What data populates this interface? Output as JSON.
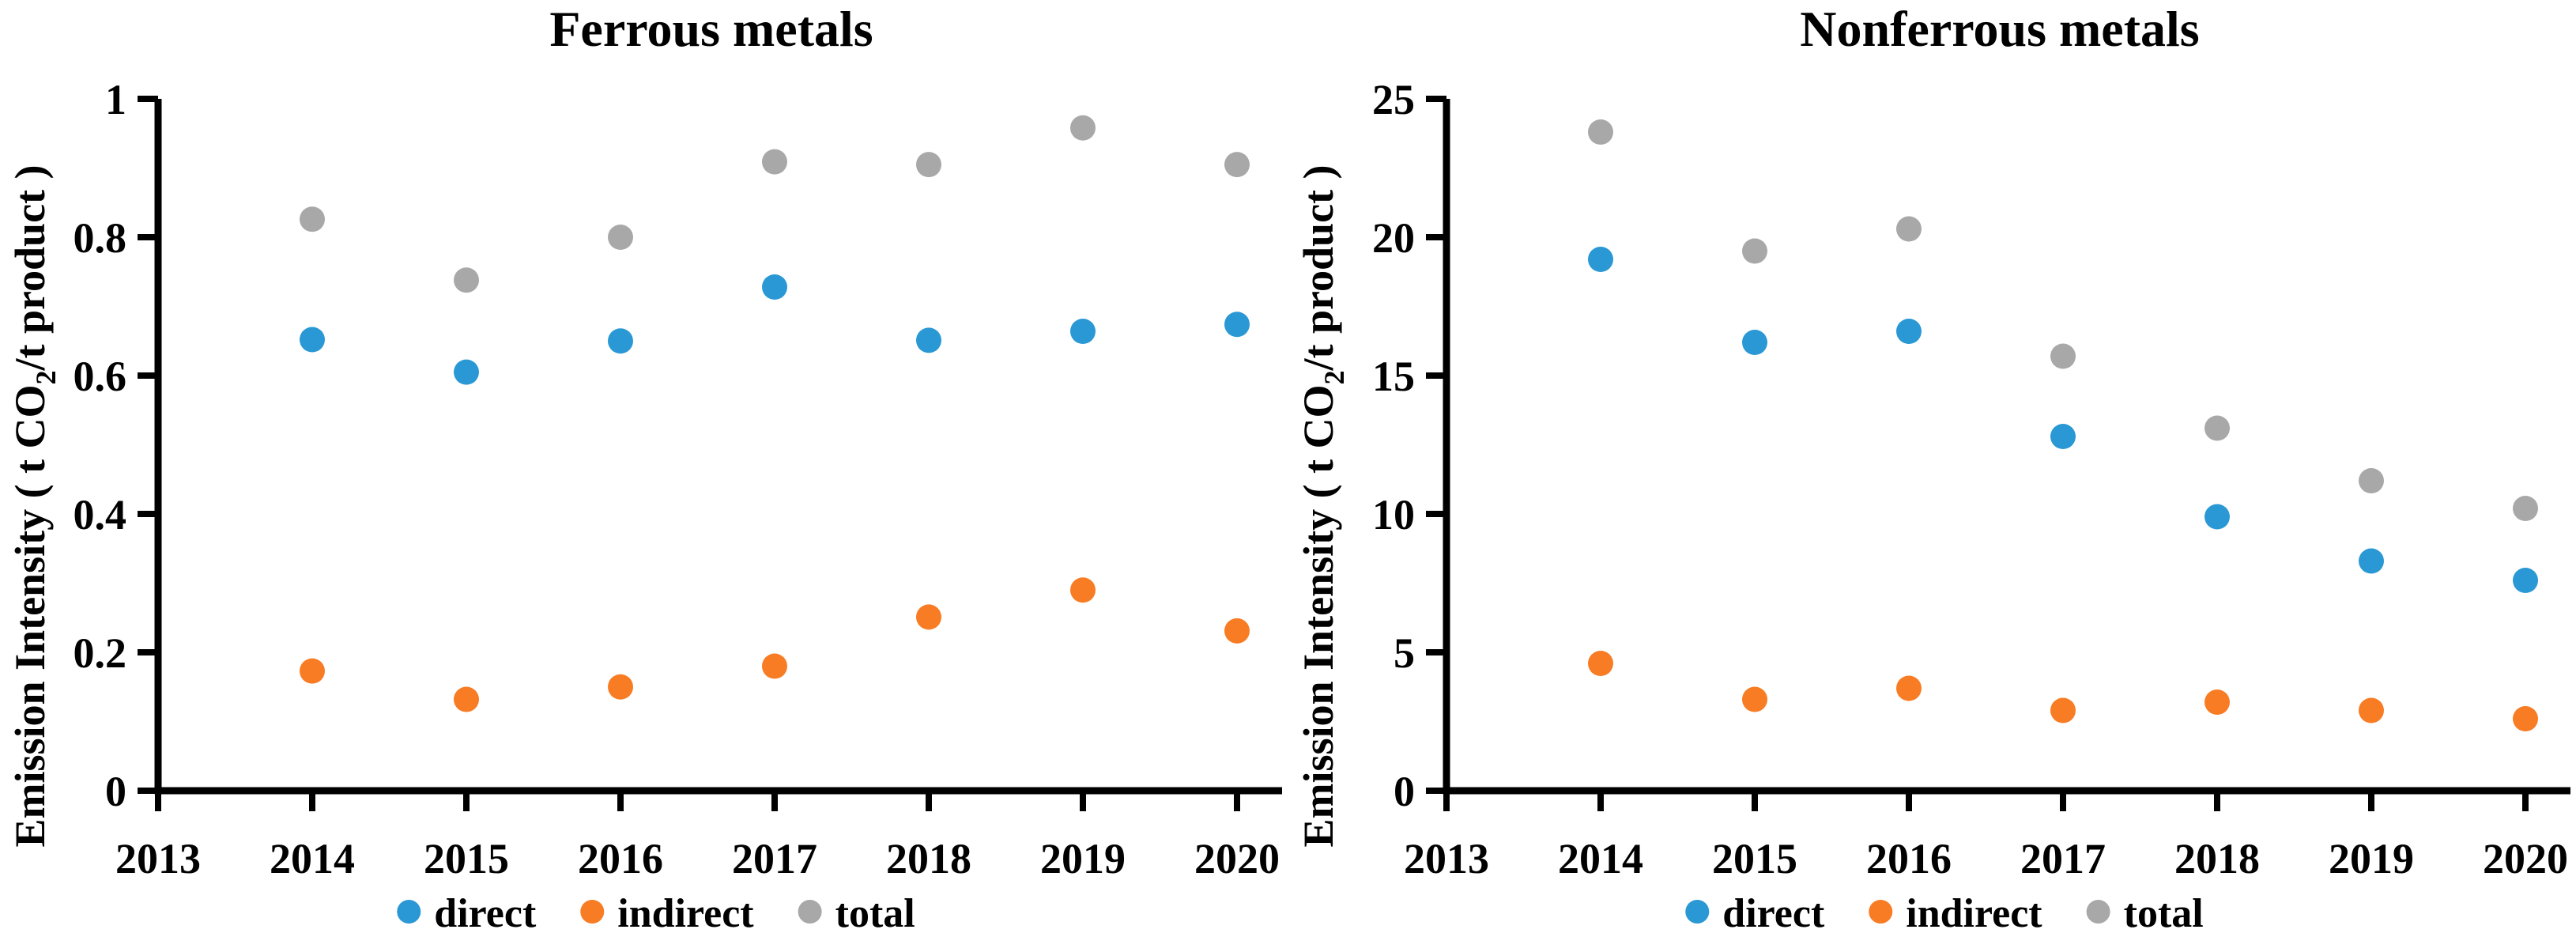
{
  "figure": {
    "background": "#ffffff",
    "axis_color": "#000000",
    "text_color": "#000000"
  },
  "chart_data": [
    {
      "type": "scatter",
      "title": "Ferrous metals",
      "ylabel": "Emission Intensity ( t CO₂/t product )",
      "ylabel_parts": {
        "pre": "Emission Intensity ( t CO",
        "sub": "2",
        "post": "/t product )"
      },
      "xlabel": "",
      "x": [
        2014,
        2015,
        2016,
        2017,
        2018,
        2019,
        2020
      ],
      "xticks": [
        {
          "value": 2013,
          "label": "2013"
        },
        {
          "value": 2014,
          "label": "2014"
        },
        {
          "value": 2015,
          "label": "2015"
        },
        {
          "value": 2016,
          "label": "2016"
        },
        {
          "value": 2017,
          "label": "2017"
        },
        {
          "value": 2018,
          "label": "2018"
        },
        {
          "value": 2019,
          "label": "2019"
        },
        {
          "value": 2020,
          "label": "2020"
        }
      ],
      "ylim": [
        0,
        1
      ],
      "yticks": [
        {
          "value": 0,
          "label": "0"
        },
        {
          "value": 0.2,
          "label": "0.2"
        },
        {
          "value": 0.4,
          "label": "0.4"
        },
        {
          "value": 0.6,
          "label": "0.6"
        },
        {
          "value": 0.8,
          "label": "0.8"
        },
        {
          "value": 1,
          "label": "1"
        }
      ],
      "grid": false,
      "legend_position": "bottom",
      "series": [
        {
          "name": "direct",
          "color": "#2a98d4",
          "values": [
            0.652,
            0.605,
            0.65,
            0.728,
            0.651,
            0.664,
            0.674
          ]
        },
        {
          "name": "indirect",
          "color": "#f87c24",
          "values": [
            0.173,
            0.132,
            0.15,
            0.18,
            0.251,
            0.29,
            0.231
          ]
        },
        {
          "name": "total",
          "color": "#a8a8a8",
          "values": [
            0.826,
            0.738,
            0.8,
            0.909,
            0.905,
            0.958,
            0.905
          ]
        }
      ]
    },
    {
      "type": "scatter",
      "title": "Nonferrous metals",
      "ylabel": "Emission Intensity ( t CO₂/t product )",
      "ylabel_parts": {
        "pre": "Emission Intensity ( t CO",
        "sub": "2",
        "post": "/t product )"
      },
      "xlabel": "",
      "x": [
        2014,
        2015,
        2016,
        2017,
        2018,
        2019,
        2020
      ],
      "xticks": [
        {
          "value": 2013,
          "label": "2013"
        },
        {
          "value": 2014,
          "label": "2014"
        },
        {
          "value": 2015,
          "label": "2015"
        },
        {
          "value": 2016,
          "label": "2016"
        },
        {
          "value": 2017,
          "label": "2017"
        },
        {
          "value": 2018,
          "label": "2018"
        },
        {
          "value": 2019,
          "label": "2019"
        },
        {
          "value": 2020,
          "label": "2020"
        }
      ],
      "ylim": [
        0,
        25
      ],
      "yticks": [
        {
          "value": 0,
          "label": "0"
        },
        {
          "value": 5,
          "label": "5"
        },
        {
          "value": 10,
          "label": "10"
        },
        {
          "value": 15,
          "label": "15"
        },
        {
          "value": 20,
          "label": "20"
        },
        {
          "value": 25,
          "label": "25"
        }
      ],
      "grid": false,
      "legend_position": "bottom",
      "series": [
        {
          "name": "direct",
          "color": "#2a98d4",
          "values": [
            19.2,
            16.2,
            16.6,
            12.8,
            9.9,
            8.3,
            7.6
          ]
        },
        {
          "name": "indirect",
          "color": "#f87c24",
          "values": [
            4.6,
            3.3,
            3.7,
            2.9,
            3.2,
            2.9,
            2.6
          ]
        },
        {
          "name": "total",
          "color": "#a8a8a8",
          "values": [
            23.8,
            19.5,
            20.3,
            15.7,
            13.1,
            11.2,
            10.2
          ]
        }
      ]
    }
  ]
}
